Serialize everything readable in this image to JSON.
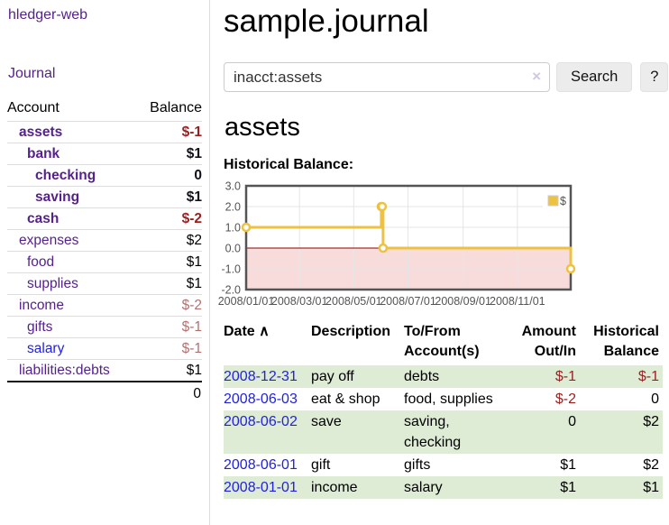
{
  "app": {
    "title": "hledger-web",
    "nav": "Journal"
  },
  "sidebar": {
    "columns": {
      "account": "Account",
      "balance": "Balance"
    },
    "accounts": [
      {
        "name": "assets",
        "indent": 1,
        "balance": "$-1",
        "emphasis": true,
        "balance_tone": "negative-strong"
      },
      {
        "name": "bank",
        "indent": 2,
        "balance": "$1",
        "emphasis": true,
        "balance_tone": "strong"
      },
      {
        "name": "checking",
        "indent": 3,
        "balance": "0",
        "emphasis": true,
        "balance_tone": "strong"
      },
      {
        "name": "saving",
        "indent": 3,
        "balance": "$1",
        "emphasis": true,
        "balance_tone": "strong"
      },
      {
        "name": "cash",
        "indent": 2,
        "balance": "$-2",
        "emphasis": true,
        "balance_tone": "negative-strong"
      },
      {
        "name": "expenses",
        "indent": 1,
        "balance": "$2",
        "emphasis": false,
        "balance_tone": "normal"
      },
      {
        "name": "food",
        "indent": 2,
        "balance": "$1",
        "emphasis": false,
        "balance_tone": "normal"
      },
      {
        "name": "supplies",
        "indent": 2,
        "balance": "$1",
        "emphasis": false,
        "balance_tone": "normal"
      },
      {
        "name": "income",
        "indent": 1,
        "balance": "$-2",
        "emphasis": false,
        "balance_tone": "negative-muted"
      },
      {
        "name": "gifts",
        "indent": 2,
        "balance": "$-1",
        "emphasis": false,
        "balance_tone": "negative-muted"
      },
      {
        "name": "salary",
        "indent": 2,
        "balance": "$-1",
        "emphasis": false,
        "balance_tone": "negative-muted",
        "link_tone": "unvisited"
      },
      {
        "name": "liabilities:debts",
        "indent": 1,
        "balance": "$1",
        "emphasis": false,
        "balance_tone": "normal"
      }
    ],
    "total": "0"
  },
  "header": {
    "title": "sample.journal"
  },
  "search": {
    "value": "inacct:assets",
    "clear_icon": "×",
    "button": "Search",
    "help": "?"
  },
  "account_page": {
    "heading": "assets",
    "chart_label": "Historical Balance:"
  },
  "chart_data": {
    "type": "line",
    "title": "Historical Balance",
    "step": true,
    "legend": "$",
    "legend_position": "top-right",
    "line_color": "#edc240",
    "negative_region_color": "#f8dcdc",
    "zero_line_color": "#8b0000",
    "ylim": [
      -2,
      3
    ],
    "yticks": [
      {
        "label": "3.0",
        "value": 3
      },
      {
        "label": "2.0",
        "value": 2
      },
      {
        "label": "1.0",
        "value": 1
      },
      {
        "label": "0.0",
        "value": 0
      },
      {
        "label": "-1.0",
        "value": -1
      },
      {
        "label": "-2.0",
        "value": -2
      }
    ],
    "xrange": [
      "2008-01-01",
      "2008-12-31"
    ],
    "xticks": [
      {
        "label": "2008/01/01",
        "date": "2008-01-01"
      },
      {
        "label": "2008/03/01",
        "date": "2008-03-01"
      },
      {
        "label": "2008/05/01",
        "date": "2008-05-01"
      },
      {
        "label": "2008/07/01",
        "date": "2008-07-01"
      },
      {
        "label": "2008/09/01",
        "date": "2008-09-01"
      },
      {
        "label": "2008/11/01",
        "date": "2008-11-01"
      }
    ],
    "series": [
      {
        "name": "$",
        "points": [
          {
            "date": "2008-01-01",
            "value": 1
          },
          {
            "date": "2008-06-01",
            "value": 2
          },
          {
            "date": "2008-06-02",
            "value": 2
          },
          {
            "date": "2008-06-03",
            "value": 0
          },
          {
            "date": "2008-12-31",
            "value": -1
          }
        ]
      }
    ]
  },
  "transactions": {
    "headers": {
      "date": "Date",
      "sort_icon": "∧",
      "description": "Description",
      "account": "To/From Account(s)",
      "amount": "Amount Out/In",
      "balance": "Historical Balance"
    },
    "rows": [
      {
        "date": "2008-12-31",
        "description": "pay off",
        "accounts": "debts",
        "amount": "$-1",
        "balance": "$-1",
        "amount_negative": true,
        "balance_negative": true
      },
      {
        "date": "2008-06-03",
        "description": "eat & shop",
        "accounts": "food, supplies",
        "amount": "$-2",
        "balance": "0",
        "amount_negative": true,
        "balance_negative": false
      },
      {
        "date": "2008-06-02",
        "description": "save",
        "accounts": "saving, checking",
        "amount": "0",
        "balance": "$2",
        "amount_negative": false,
        "balance_negative": false
      },
      {
        "date": "2008-06-01",
        "description": "gift",
        "accounts": "gifts",
        "amount": "$1",
        "balance": "$2",
        "amount_negative": false,
        "balance_negative": false
      },
      {
        "date": "2008-01-01",
        "description": "income",
        "accounts": "salary",
        "amount": "$1",
        "balance": "$1",
        "amount_negative": false,
        "balance_negative": false
      }
    ]
  },
  "colors": {
    "link_purple": "#55228b",
    "link_blue": "#2222dd",
    "negative_strong": "#9a1f1f",
    "negative_muted": "#b47070",
    "row_stripe_green": "#deebd5",
    "accent_gold": "#edc240"
  }
}
